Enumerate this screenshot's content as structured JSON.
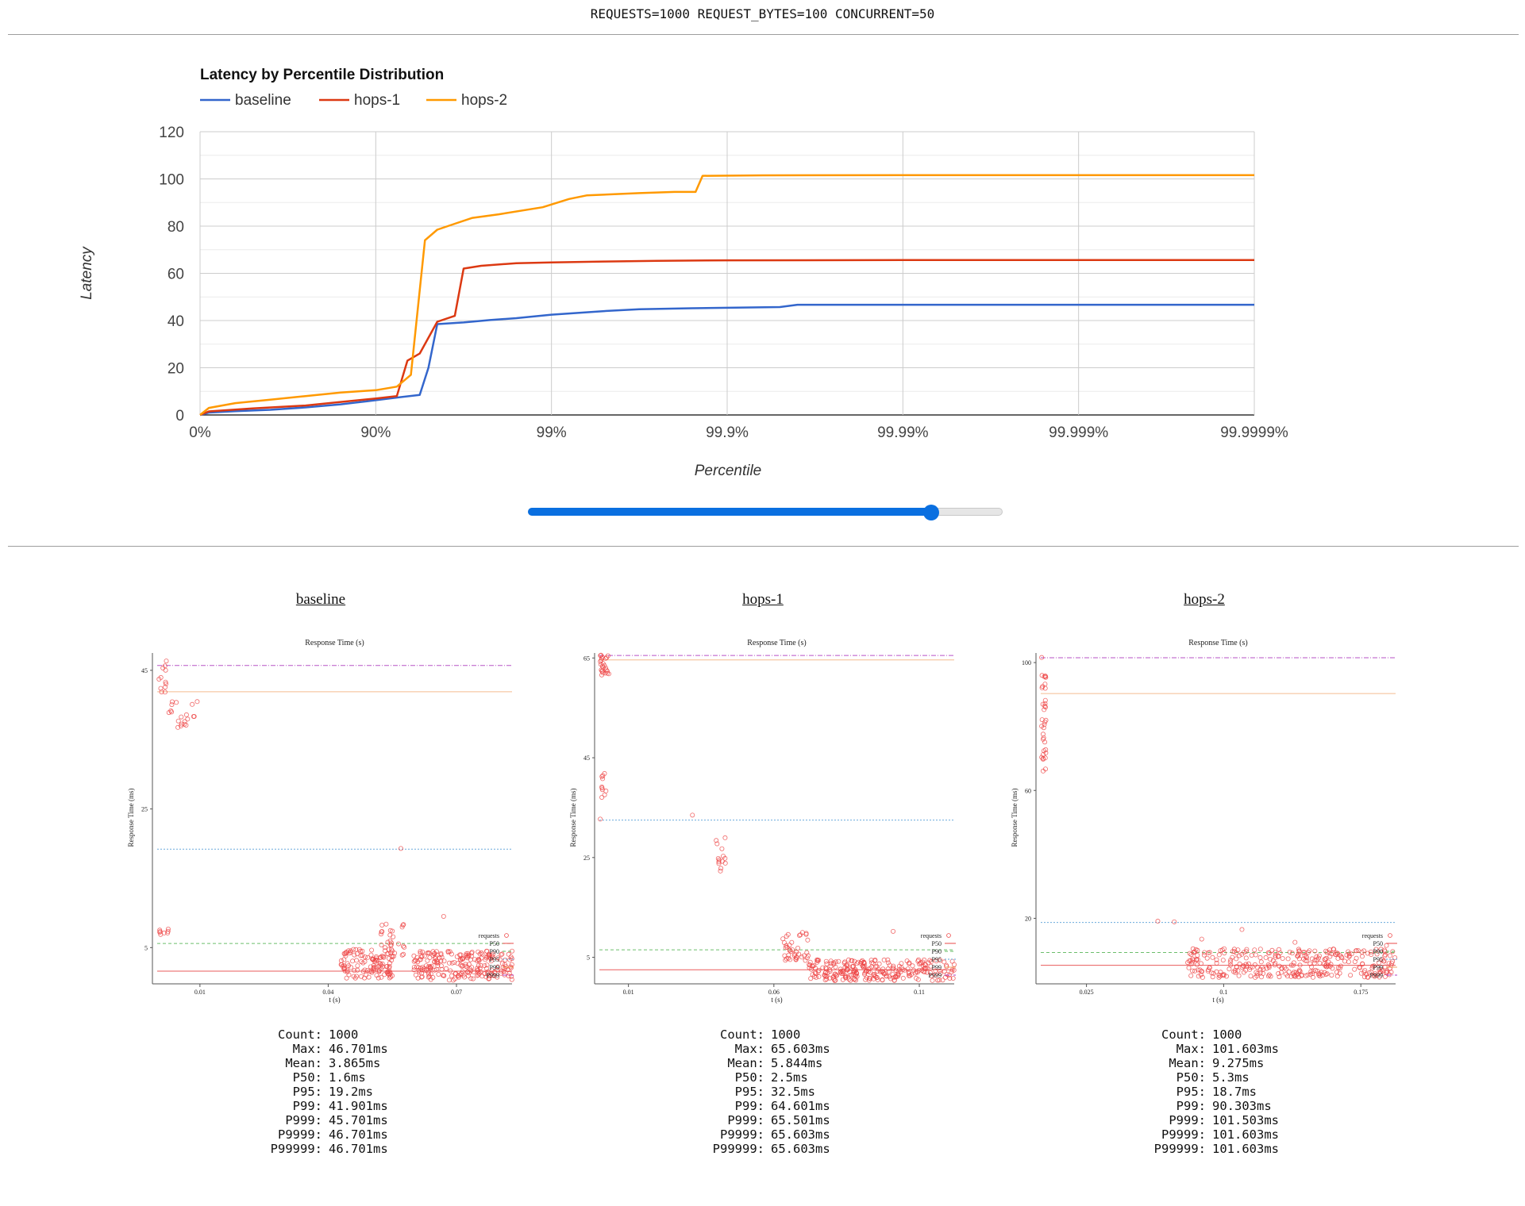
{
  "header": {
    "text": "REQUESTS=1000 REQUEST_BYTES=100 CONCURRENT=50"
  },
  "slider": {
    "value_fraction": 0.85
  },
  "chart_data": [
    {
      "type": "line",
      "title": "Latency by Percentile Distribution",
      "xlabel": "Percentile",
      "ylabel": "Latency",
      "x_ticks": [
        "0%",
        "90%",
        "99%",
        "99.9%",
        "99.99%",
        "99.999%",
        "99.9999%"
      ],
      "y_ticks": [
        0,
        20,
        40,
        60,
        80,
        100,
        120
      ],
      "ylim": [
        0,
        120
      ],
      "xlim_nines": [
        0,
        6
      ],
      "grid": true,
      "legend": "top-left",
      "series": [
        {
          "name": "baseline",
          "color": "#3366cc",
          "x": [
            0,
            0.05,
            0.2,
            0.4,
            0.6,
            0.8,
            0.95,
            1.1,
            1.25,
            1.3,
            1.35,
            1.5,
            1.65,
            1.8,
            2.0,
            2.1,
            2.2,
            2.3,
            2.5,
            2.8,
            3.3,
            3.4,
            3.6,
            4.0,
            5.0,
            6.0
          ],
          "y": [
            0,
            1,
            1.6,
            2.2,
            3.2,
            4.5,
            5.8,
            7.2,
            8.5,
            20,
            38.5,
            39.2,
            40.2,
            41.0,
            42.5,
            43.0,
            43.5,
            44.0,
            44.8,
            45.2,
            45.7,
            46.7,
            46.7,
            46.7,
            46.7,
            46.7
          ]
        },
        {
          "name": "hops-1",
          "color": "#dc3912",
          "x": [
            0,
            0.05,
            0.3,
            0.6,
            0.8,
            1.0,
            1.12,
            1.18,
            1.25,
            1.35,
            1.45,
            1.5,
            1.6,
            1.8,
            2.0,
            2.3,
            2.6,
            3.0,
            4.0,
            5.0,
            6.0
          ],
          "y": [
            0,
            1.5,
            2.8,
            4.0,
            5.5,
            7.0,
            8.0,
            23,
            26,
            39.5,
            42,
            62,
            63.2,
            64.3,
            64.6,
            65.0,
            65.3,
            65.5,
            65.6,
            65.6,
            65.6
          ]
        },
        {
          "name": "hops-2",
          "color": "#ff9900",
          "x": [
            0,
            0.05,
            0.2,
            0.4,
            0.6,
            0.8,
            1.0,
            1.12,
            1.2,
            1.28,
            1.35,
            1.45,
            1.55,
            1.7,
            1.95,
            2.1,
            2.2,
            2.5,
            2.7,
            2.82,
            2.86,
            3.2,
            4.0,
            5.0,
            6.0
          ],
          "y": [
            0,
            3,
            5,
            6.5,
            8.0,
            9.5,
            10.5,
            12,
            17,
            74,
            78.5,
            81,
            83.5,
            85,
            88,
            91.5,
            93,
            94,
            94.5,
            94.5,
            101.3,
            101.5,
            101.6,
            101.6,
            101.6
          ]
        }
      ]
    },
    {
      "type": "scatter",
      "panel": "baseline",
      "title": "Response Time (s)",
      "xlabel": "t (s)",
      "ylabel": "Response Time (ms)",
      "x_ticks": [
        0.01,
        0.04,
        0.07
      ],
      "y_ticks": [
        5,
        25,
        45
      ],
      "xlim": [
        0.0,
        0.083
      ],
      "ylim": [
        0,
        47.5
      ],
      "legend_entries": [
        "requests",
        "P50",
        "P90",
        "P95",
        "P99",
        "P999"
      ],
      "percentile_lines": {
        "P50": 1.6,
        "P90": 5.6,
        "P95": 19.2,
        "P99": 41.9,
        "P999": 45.7
      },
      "point_clusters": [
        {
          "x": [
            0.0003,
            0.0025
          ],
          "y": [
            41.5,
            46.7
          ],
          "n": 12
        },
        {
          "x": [
            0.0025,
            0.0095
          ],
          "y": [
            36.5,
            40.5
          ],
          "n": 20
        },
        {
          "x": [
            0.0005,
            0.0035
          ],
          "y": [
            6.5,
            7.8
          ],
          "n": 8
        },
        {
          "x": [
            0.043,
            0.055
          ],
          "y": [
            0.6,
            4.8
          ],
          "n": 120
        },
        {
          "x": [
            0.052,
            0.058
          ],
          "y": [
            3.5,
            8.5
          ],
          "n": 30
        },
        {
          "x": [
            0.06,
            0.083
          ],
          "y": [
            0.3,
            4.5
          ],
          "n": 220
        }
      ],
      "outliers": [
        {
          "x": 0.057,
          "y": 19.3
        },
        {
          "x": 0.067,
          "y": 9.5
        }
      ]
    },
    {
      "type": "scatter",
      "panel": "hops-1",
      "title": "Response Time (s)",
      "xlabel": "t (s)",
      "ylabel": "Response Time (ms)",
      "x_ticks": [
        0.01,
        0.06,
        0.11
      ],
      "y_ticks": [
        5,
        25,
        45,
        65
      ],
      "xlim": [
        0.0,
        0.122
      ],
      "ylim": [
        0,
        66
      ],
      "legend_entries": [
        "requests",
        "P50",
        "P90",
        "P95",
        "P99",
        "P999"
      ],
      "percentile_lines": {
        "P50": 2.5,
        "P90": 6.5,
        "P95": 32.5,
        "P99": 64.6,
        "P999": 65.5
      },
      "point_clusters": [
        {
          "x": [
            0.0003,
            0.0035
          ],
          "y": [
            61.5,
            65.6
          ],
          "n": 25
        },
        {
          "x": [
            0.0003,
            0.0025
          ],
          "y": [
            37,
            42
          ],
          "n": 10
        },
        {
          "x": [
            0.039,
            0.044
          ],
          "y": [
            22,
            29
          ],
          "n": 14
        },
        {
          "x": [
            0.063,
            0.072
          ],
          "y": [
            4,
            10
          ],
          "n": 40
        },
        {
          "x": [
            0.072,
            0.122
          ],
          "y": [
            0.3,
            4.5
          ],
          "n": 260
        }
      ],
      "outliers": [
        {
          "x": 0.0003,
          "y": 32.7
        },
        {
          "x": 0.032,
          "y": 33.5
        },
        {
          "x": 0.101,
          "y": 10.2
        }
      ]
    },
    {
      "type": "scatter",
      "panel": "hops-2",
      "title": "Response Time (s)",
      "xlabel": "t (s)",
      "ylabel": "Response Time (ms)",
      "x_ticks": [
        0.025,
        0.1,
        0.175
      ],
      "y_ticks": [
        20,
        60,
        100
      ],
      "xlim": [
        0.0,
        0.194
      ],
      "ylim": [
        0,
        103
      ],
      "legend_entries": [
        "requests",
        "P50",
        "P90",
        "P95",
        "P99",
        "P999"
      ],
      "percentile_lines": {
        "P50": 5.3,
        "P90": 9.3,
        "P95": 18.7,
        "P99": 90.3,
        "P999": 101.5
      },
      "point_clusters": [
        {
          "x": [
            0.0005,
            0.003
          ],
          "y": [
            65,
            96
          ],
          "n": 35
        },
        {
          "x": [
            0.08,
            0.194
          ],
          "y": [
            1.5,
            10.5
          ],
          "n": 330
        }
      ],
      "outliers": [
        {
          "x": 0.0005,
          "y": 101.6
        },
        {
          "x": 0.064,
          "y": 19.1
        },
        {
          "x": 0.073,
          "y": 18.9
        },
        {
          "x": 0.088,
          "y": 13.5
        },
        {
          "x": 0.11,
          "y": 16.5
        },
        {
          "x": 0.139,
          "y": 12.5
        },
        {
          "x": 0.189,
          "y": 11.5
        }
      ]
    }
  ],
  "panels": [
    {
      "title": "baseline",
      "stats": [
        {
          "label": "Count:",
          "value": "1000"
        },
        {
          "label": "Max:",
          "value": "46.701ms"
        },
        {
          "label": "Mean:",
          "value": "3.865ms"
        },
        {
          "label": "P50:",
          "value": "1.6ms"
        },
        {
          "label": "P95:",
          "value": "19.2ms"
        },
        {
          "label": "P99:",
          "value": "41.901ms"
        },
        {
          "label": "P999:",
          "value": "45.701ms"
        },
        {
          "label": "P9999:",
          "value": "46.701ms"
        },
        {
          "label": "P99999:",
          "value": "46.701ms"
        }
      ]
    },
    {
      "title": "hops-1",
      "stats": [
        {
          "label": "Count:",
          "value": "1000"
        },
        {
          "label": "Max:",
          "value": "65.603ms"
        },
        {
          "label": "Mean:",
          "value": "5.844ms"
        },
        {
          "label": "P50:",
          "value": "2.5ms"
        },
        {
          "label": "P95:",
          "value": "32.5ms"
        },
        {
          "label": "P99:",
          "value": "64.601ms"
        },
        {
          "label": "P999:",
          "value": "65.501ms"
        },
        {
          "label": "P9999:",
          "value": "65.603ms"
        },
        {
          "label": "P99999:",
          "value": "65.603ms"
        }
      ]
    },
    {
      "title": "hops-2",
      "stats": [
        {
          "label": "Count:",
          "value": "1000"
        },
        {
          "label": "Max:",
          "value": "101.603ms"
        },
        {
          "label": "Mean:",
          "value": "9.275ms"
        },
        {
          "label": "P50:",
          "value": "5.3ms"
        },
        {
          "label": "P95:",
          "value": "18.7ms"
        },
        {
          "label": "P99:",
          "value": "90.303ms"
        },
        {
          "label": "P999:",
          "value": "101.503ms"
        },
        {
          "label": "P9999:",
          "value": "101.603ms"
        },
        {
          "label": "P99999:",
          "value": "101.603ms"
        }
      ]
    }
  ],
  "colors": {
    "percentile_line_p50": "#e84a4a",
    "percentile_line_p90": "#5cb85c",
    "percentile_line_p95": "#5aa0d8",
    "percentile_line_p99": "#f0a060",
    "percentile_line_p999": "#b040c0",
    "points": "#ee4444"
  }
}
